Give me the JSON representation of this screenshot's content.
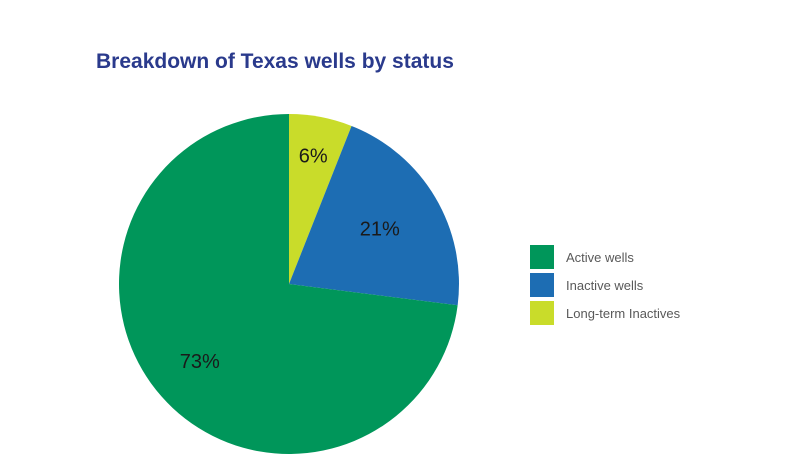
{
  "chart_data": {
    "type": "pie",
    "title": "Breakdown of Texas wells by status",
    "categories": [
      "Active wells",
      "Inactive wells",
      "Long-term Inactives"
    ],
    "values": [
      73,
      21,
      6
    ],
    "labels": [
      "73%",
      "21%",
      "6%"
    ],
    "colors": [
      "#00965a",
      "#1d6db3",
      "#c9dc2a"
    ],
    "legend_position": "right"
  }
}
